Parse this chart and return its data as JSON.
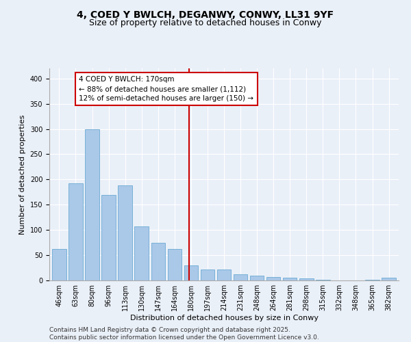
{
  "title": "4, COED Y BWLCH, DEGANWY, CONWY, LL31 9YF",
  "subtitle": "Size of property relative to detached houses in Conwy",
  "xlabel": "Distribution of detached houses by size in Conwy",
  "ylabel": "Number of detached properties",
  "categories": [
    "46sqm",
    "63sqm",
    "80sqm",
    "96sqm",
    "113sqm",
    "130sqm",
    "147sqm",
    "164sqm",
    "180sqm",
    "197sqm",
    "214sqm",
    "231sqm",
    "248sqm",
    "264sqm",
    "281sqm",
    "298sqm",
    "315sqm",
    "332sqm",
    "348sqm",
    "365sqm",
    "382sqm"
  ],
  "values": [
    62,
    193,
    299,
    170,
    188,
    107,
    75,
    62,
    30,
    22,
    22,
    12,
    10,
    7,
    6,
    4,
    1,
    0,
    0,
    1,
    5
  ],
  "bar_color": "#aac8e8",
  "bar_edge_color": "#6aaad4",
  "vline_color": "#cc0000",
  "annotation_box_edge": "#cc0000",
  "background_color": "#eaf0f8",
  "footer_line1": "Contains HM Land Registry data © Crown copyright and database right 2025.",
  "footer_line2": "Contains public sector information licensed under the Open Government Licence v3.0.",
  "marker_label": "4 COED Y BWLCH: 170sqm",
  "annotation_line1": "← 88% of detached houses are smaller (1,112)",
  "annotation_line2": "12% of semi-detached houses are larger (150) →",
  "ylim": [
    0,
    420
  ],
  "title_fontsize": 10,
  "subtitle_fontsize": 9,
  "axis_label_fontsize": 8,
  "tick_fontsize": 7,
  "footer_fontsize": 6.5,
  "annotation_fontsize": 7.5
}
